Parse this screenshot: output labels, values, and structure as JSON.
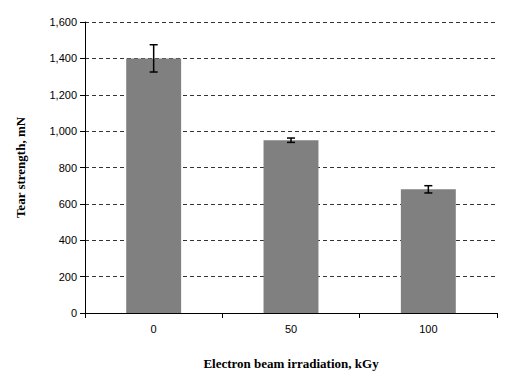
{
  "chart_data": {
    "type": "bar",
    "x_label": "Electron beam irradiation, kGy",
    "y_label": "Tear strength, mN",
    "categories": [
      "0",
      "50",
      "100"
    ],
    "values": [
      1400,
      950,
      680
    ],
    "errors": [
      75,
      12,
      20
    ],
    "color": "#808080",
    "ylim": [
      0,
      1600
    ],
    "yticks": [
      0,
      200,
      400,
      600,
      800,
      {
        "value": 1000,
        "label": "1,000"
      },
      {
        "value": 1200,
        "label": "1,200"
      },
      {
        "value": 1400,
        "label": "1,400"
      },
      {
        "value": 1600,
        "label": "1,600"
      }
    ],
    "grid": true
  }
}
